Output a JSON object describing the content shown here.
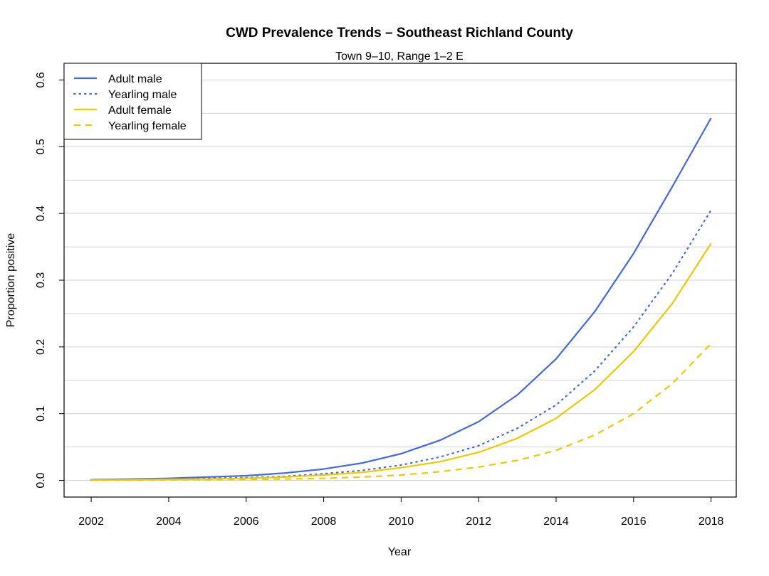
{
  "chart_data": {
    "type": "line",
    "title": "CWD Prevalence Trends – Southeast Richland County",
    "subtitle": "Town 9–10, Range 1–2 E",
    "xlabel": "Year",
    "ylabel": "Proportion positive",
    "xlim": [
      2001.3,
      2018.65
    ],
    "ylim": [
      -0.025,
      0.625
    ],
    "x_ticks": [
      2002,
      2004,
      2006,
      2008,
      2010,
      2012,
      2014,
      2016,
      2018
    ],
    "y_ticks": [
      0.0,
      0.1,
      0.2,
      0.3,
      0.4,
      0.5,
      0.6
    ],
    "y_tick_labels": [
      "0.0",
      "0.1",
      "0.2",
      "0.3",
      "0.4",
      "0.5",
      "0.6"
    ],
    "grid": "horizontal",
    "legend_position": "top-left",
    "x": [
      2002,
      2003,
      2004,
      2005,
      2006,
      2007,
      2008,
      2009,
      2010,
      2011,
      2012,
      2013,
      2014,
      2015,
      2016,
      2017,
      2018
    ],
    "series": [
      {
        "name": "Adult male",
        "color": "#4169E1",
        "dash": "solid",
        "values": [
          0.001,
          0.002,
          0.003,
          0.005,
          0.007,
          0.011,
          0.017,
          0.026,
          0.04,
          0.06,
          0.088,
          0.128,
          0.182,
          0.253,
          0.34,
          0.44,
          0.543
        ]
      },
      {
        "name": "Yearling male",
        "color": "#4169E1",
        "dash": "dotted",
        "values": [
          0.0005,
          0.001,
          0.002,
          0.003,
          0.004,
          0.006,
          0.01,
          0.015,
          0.023,
          0.035,
          0.052,
          0.078,
          0.113,
          0.164,
          0.23,
          0.31,
          0.405
        ]
      },
      {
        "name": "Adult female",
        "color": "#EEC900",
        "dash": "solid",
        "values": [
          0.0005,
          0.001,
          0.0015,
          0.002,
          0.003,
          0.005,
          0.008,
          0.012,
          0.019,
          0.028,
          0.042,
          0.063,
          0.093,
          0.136,
          0.193,
          0.265,
          0.355
        ]
      },
      {
        "name": "Yearling female",
        "color": "#EEC900",
        "dash": "dashed",
        "values": [
          0.0002,
          0.0004,
          0.0007,
          0.001,
          0.0015,
          0.002,
          0.003,
          0.005,
          0.008,
          0.013,
          0.02,
          0.03,
          0.045,
          0.068,
          0.1,
          0.145,
          0.205
        ]
      }
    ]
  }
}
